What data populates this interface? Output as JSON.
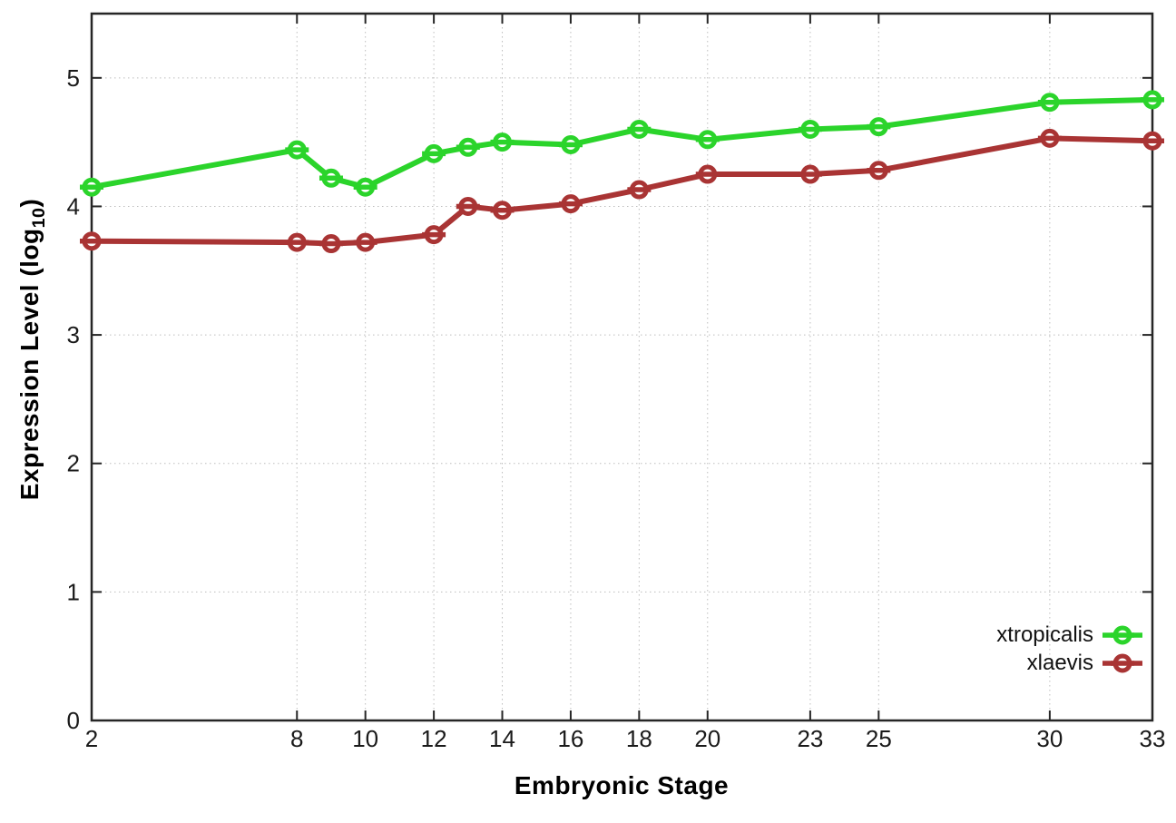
{
  "page": {
    "background": "#ffffff"
  },
  "chart_data": {
    "type": "line",
    "title": "",
    "xlabel": "Embryonic Stage",
    "ylabel": "Expression Level (log10)",
    "ylabel_parts": {
      "main": "Expression Level (log",
      "sub": "10",
      "end": ")"
    },
    "xlim": [
      2,
      33
    ],
    "ylim": [
      0,
      5.5
    ],
    "x_ticks": [
      2,
      8,
      10,
      12,
      14,
      16,
      18,
      20,
      23,
      25,
      30,
      33
    ],
    "y_ticks": [
      0,
      1,
      2,
      3,
      4,
      5
    ],
    "grid": "dotted",
    "legend_position": "inside bottom-right",
    "marker_style": "open circle with horizontal error-bar",
    "x": [
      2,
      8,
      9,
      10,
      12,
      13,
      14,
      16,
      18,
      20,
      23,
      25,
      30,
      33
    ],
    "series": [
      {
        "name": "xtropicalis",
        "color": "#2bd42b",
        "values": [
          4.15,
          4.44,
          4.22,
          4.15,
          4.41,
          4.46,
          4.5,
          4.48,
          4.6,
          4.52,
          4.6,
          4.62,
          4.81,
          4.83
        ]
      },
      {
        "name": "xlaevis",
        "color": "#a93434",
        "values": [
          3.73,
          3.72,
          3.71,
          3.72,
          3.78,
          4.0,
          3.97,
          4.02,
          4.13,
          4.25,
          4.25,
          4.28,
          4.53,
          4.51
        ]
      }
    ],
    "colors": {
      "grid": "#bdbdbd",
      "frame": "#262626",
      "tick_text": "#1a1a1a"
    }
  }
}
